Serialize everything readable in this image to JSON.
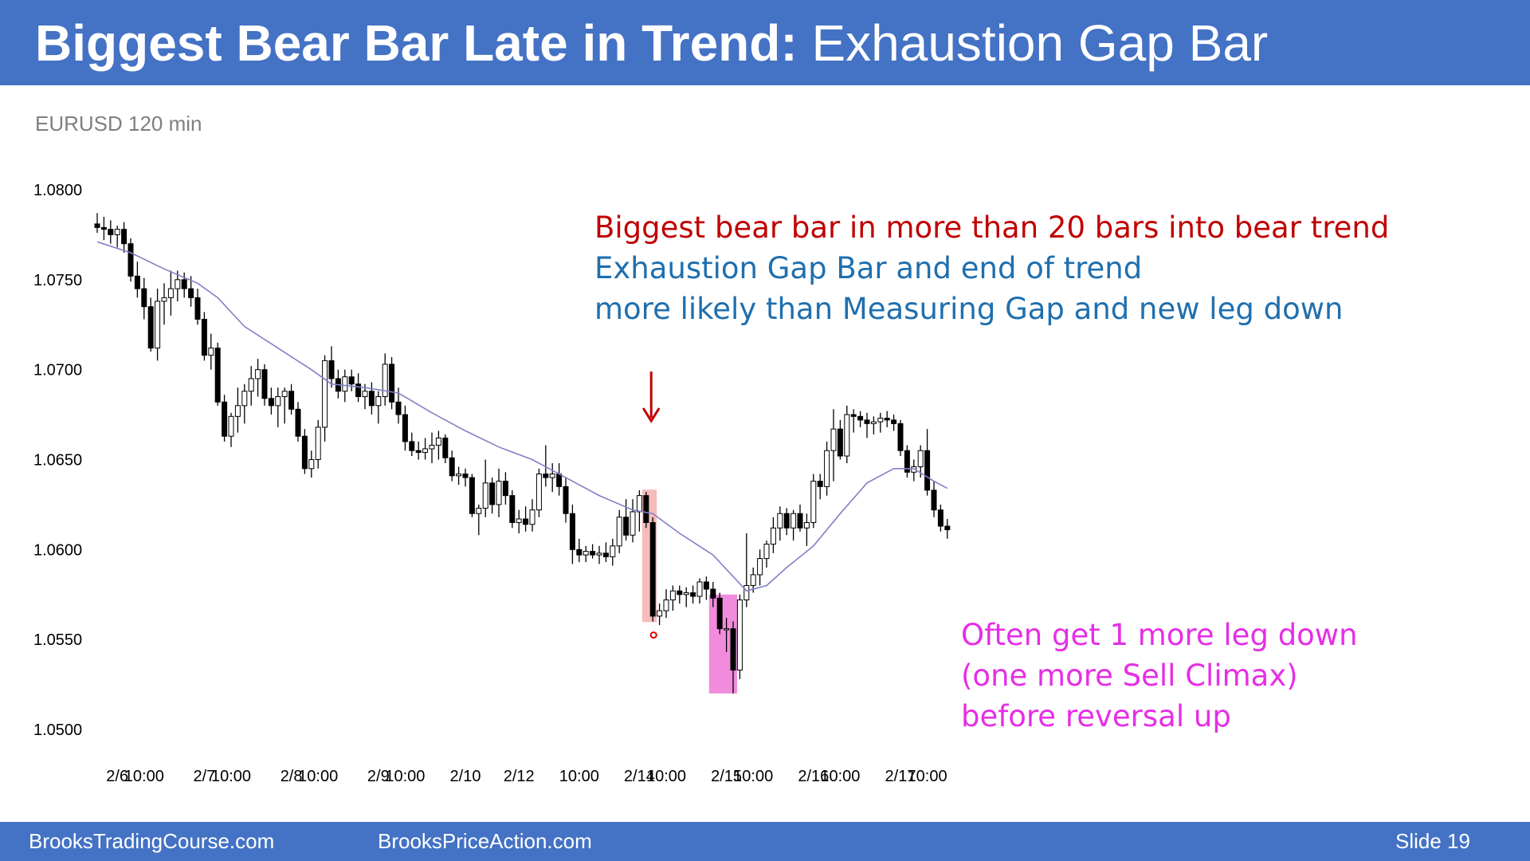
{
  "slide": {
    "title_bold": "Biggest Bear Bar Late in Trend:",
    "title_rest": "Exhaustion Gap Bar",
    "subtitle": "EURUSD 120 min",
    "number": "Slide  19"
  },
  "footer": {
    "left": "BrooksTradingCourse.com",
    "center": "BrooksPriceAction.com"
  },
  "annotations": {
    "top_red": "Biggest bear bar in more than 20 bars into bear trend",
    "top_blue_1": "Exhaustion Gap Bar and end of trend",
    "top_blue_2": "more likely than Measuring Gap and new leg down",
    "bottom_1": "Often get 1 more leg down",
    "bottom_2": "(one more Sell Climax)",
    "bottom_3": "before reversal up"
  },
  "colors": {
    "header": "#4472c4",
    "bear_body": "#000000",
    "bull_body": "#ffffff",
    "ema": "#8080c8",
    "arrow": "#c00000",
    "highlight_red": "#f4b0b0",
    "highlight_magenta": "#f080d8"
  },
  "chart_data": {
    "type": "candlestick",
    "ylim": [
      1.05,
      1.08
    ],
    "yticks": [
      "1.0800",
      "1.0750",
      "1.0700",
      "1.0650",
      "1.0600",
      "1.0550",
      "1.0500"
    ],
    "yvalues": [
      1.08,
      1.075,
      1.07,
      1.065,
      1.06,
      1.055,
      1.05
    ],
    "xticks": [
      {
        "label": "2/6",
        "bar": 3
      },
      {
        "label": "10:00",
        "bar": 7
      },
      {
        "label": "2/7",
        "bar": 16
      },
      {
        "label": "10:00",
        "bar": 20
      },
      {
        "label": "2/8",
        "bar": 29
      },
      {
        "label": "10:00",
        "bar": 33
      },
      {
        "label": "2/9",
        "bar": 42
      },
      {
        "label": "10:00",
        "bar": 46
      },
      {
        "label": "2/10",
        "bar": 55
      },
      {
        "label": "2/12",
        "bar": 63
      },
      {
        "label": "10:00",
        "bar": 72
      },
      {
        "label": "2/14",
        "bar": 81
      },
      {
        "label": "10:00",
        "bar": 85
      },
      {
        "label": "2/15",
        "bar": 94
      },
      {
        "label": "10:00",
        "bar": 98
      },
      {
        "label": "2/16",
        "bar": 107
      },
      {
        "label": "10:00",
        "bar": 111
      },
      {
        "label": "2/17",
        "bar": 120
      },
      {
        "label": "10:00",
        "bar": 124
      }
    ],
    "ohlc": [
      [
        1.0781,
        1.0787,
        1.0776,
        1.0779
      ],
      [
        1.0779,
        1.0785,
        1.0772,
        1.0778
      ],
      [
        1.0778,
        1.0783,
        1.077,
        1.0775
      ],
      [
        1.0775,
        1.078,
        1.0768,
        1.0778
      ],
      [
        1.0778,
        1.0782,
        1.0765,
        1.077
      ],
      [
        1.077,
        1.0773,
        1.0749,
        1.0752
      ],
      [
        1.0752,
        1.076,
        1.074,
        1.0745
      ],
      [
        1.0745,
        1.0751,
        1.0728,
        1.0735
      ],
      [
        1.0735,
        1.074,
        1.071,
        1.0712
      ],
      [
        1.0712,
        1.0745,
        1.0705,
        1.0738
      ],
      [
        1.0738,
        1.0748,
        1.0725,
        1.074
      ],
      [
        1.074,
        1.0755,
        1.073,
        1.0745
      ],
      [
        1.0745,
        1.0755,
        1.0738,
        1.075
      ],
      [
        1.075,
        1.0754,
        1.074,
        1.0745
      ],
      [
        1.0745,
        1.0752,
        1.0735,
        1.074
      ],
      [
        1.074,
        1.0745,
        1.0725,
        1.0728
      ],
      [
        1.0728,
        1.0732,
        1.0705,
        1.0708
      ],
      [
        1.0708,
        1.072,
        1.07,
        1.0712
      ],
      [
        1.0712,
        1.0715,
        1.068,
        1.0682
      ],
      [
        1.0682,
        1.0686,
        1.066,
        1.0663
      ],
      [
        1.0663,
        1.0676,
        1.0657,
        1.0674
      ],
      [
        1.0674,
        1.069,
        1.0665,
        1.068
      ],
      [
        1.068,
        1.0692,
        1.067,
        1.0688
      ],
      [
        1.0688,
        1.0702,
        1.068,
        1.0695
      ],
      [
        1.0695,
        1.0706,
        1.0685,
        1.07
      ],
      [
        1.07,
        1.0703,
        1.068,
        1.0684
      ],
      [
        1.0684,
        1.069,
        1.0675,
        1.068
      ],
      [
        1.068,
        1.069,
        1.0668,
        1.0685
      ],
      [
        1.0685,
        1.069,
        1.067,
        1.0688
      ],
      [
        1.0688,
        1.0692,
        1.0675,
        1.0678
      ],
      [
        1.0678,
        1.0682,
        1.066,
        1.0663
      ],
      [
        1.0663,
        1.0667,
        1.0642,
        1.0645
      ],
      [
        1.0645,
        1.0655,
        1.064,
        1.065
      ],
      [
        1.065,
        1.0672,
        1.0645,
        1.0668
      ],
      [
        1.0668,
        1.0708,
        1.066,
        1.0705
      ],
      [
        1.0705,
        1.0713,
        1.069,
        1.0695
      ],
      [
        1.0695,
        1.07,
        1.0684,
        1.0688
      ],
      [
        1.0688,
        1.07,
        1.0682,
        1.0696
      ],
      [
        1.0696,
        1.07,
        1.0688,
        1.0692
      ],
      [
        1.0692,
        1.0698,
        1.0682,
        1.0685
      ],
      [
        1.0685,
        1.0692,
        1.0678,
        1.0688
      ],
      [
        1.0688,
        1.0693,
        1.0675,
        1.068
      ],
      [
        1.068,
        1.0688,
        1.067,
        1.0685
      ],
      [
        1.0685,
        1.0709,
        1.068,
        1.0703
      ],
      [
        1.0703,
        1.0707,
        1.0678,
        1.0682
      ],
      [
        1.0682,
        1.069,
        1.067,
        1.0675
      ],
      [
        1.0675,
        1.068,
        1.0655,
        1.066
      ],
      [
        1.066,
        1.0665,
        1.0652,
        1.0655
      ],
      [
        1.0655,
        1.066,
        1.065,
        1.0654
      ],
      [
        1.0654,
        1.0662,
        1.065,
        1.0656
      ],
      [
        1.0656,
        1.0665,
        1.0648,
        1.0658
      ],
      [
        1.0658,
        1.0666,
        1.065,
        1.0662
      ],
      [
        1.0662,
        1.0664,
        1.0648,
        1.0651
      ],
      [
        1.0651,
        1.0655,
        1.0638,
        1.0641
      ],
      [
        1.0641,
        1.0646,
        1.0636,
        1.0642
      ],
      [
        1.0642,
        1.0645,
        1.0635,
        1.064
      ],
      [
        1.064,
        1.0642,
        1.0618,
        1.062
      ],
      [
        1.062,
        1.0625,
        1.0608,
        1.0623
      ],
      [
        1.0623,
        1.065,
        1.0618,
        1.0637
      ],
      [
        1.0637,
        1.064,
        1.062,
        1.0625
      ],
      [
        1.0625,
        1.0645,
        1.0618,
        1.0638
      ],
      [
        1.0638,
        1.0643,
        1.0625,
        1.063
      ],
      [
        1.063,
        1.0633,
        1.0612,
        1.0615
      ],
      [
        1.0615,
        1.0622,
        1.0609,
        1.0617
      ],
      [
        1.0617,
        1.0624,
        1.061,
        1.0614
      ],
      [
        1.0614,
        1.0628,
        1.061,
        1.0622
      ],
      [
        1.0622,
        1.0645,
        1.0618,
        1.0642
      ],
      [
        1.0642,
        1.0658,
        1.0635,
        1.064
      ],
      [
        1.064,
        1.0648,
        1.0632,
        1.0642
      ],
      [
        1.0642,
        1.0648,
        1.063,
        1.0635
      ],
      [
        1.0635,
        1.064,
        1.0615,
        1.062
      ],
      [
        1.062,
        1.0625,
        1.0592,
        1.06
      ],
      [
        1.06,
        1.0606,
        1.0593,
        1.0597
      ],
      [
        1.0597,
        1.0602,
        1.0593,
        1.0599
      ],
      [
        1.0599,
        1.0603,
        1.0595,
        1.0597
      ],
      [
        1.0597,
        1.0602,
        1.0592,
        1.0598
      ],
      [
        1.0598,
        1.0604,
        1.0593,
        1.0596
      ],
      [
        1.0596,
        1.0606,
        1.0591,
        1.0602
      ],
      [
        1.0602,
        1.0622,
        1.0598,
        1.0618
      ],
      [
        1.0618,
        1.0628,
        1.0605,
        1.0608
      ],
      [
        1.0608,
        1.0628,
        1.0604,
        1.0621
      ],
      [
        1.0621,
        1.0633,
        1.061,
        1.063
      ],
      [
        1.063,
        1.0632,
        1.0612,
        1.0615
      ],
      [
        1.0615,
        1.0618,
        1.056,
        1.0563
      ],
      [
        1.0563,
        1.057,
        1.0558,
        1.0566
      ],
      [
        1.0566,
        1.0578,
        1.0562,
        1.0572
      ],
      [
        1.0572,
        1.058,
        1.0566,
        1.0577
      ],
      [
        1.0577,
        1.058,
        1.057,
        1.0575
      ],
      [
        1.0575,
        1.0579,
        1.0568,
        1.0576
      ],
      [
        1.0576,
        1.058,
        1.057,
        1.0574
      ],
      [
        1.0574,
        1.0584,
        1.057,
        1.0582
      ],
      [
        1.0582,
        1.0585,
        1.0572,
        1.0578
      ],
      [
        1.0578,
        1.0582,
        1.0568,
        1.0573
      ],
      [
        1.0573,
        1.0576,
        1.0553,
        1.0556
      ],
      [
        1.0556,
        1.0562,
        1.0543,
        1.0556
      ],
      [
        1.0556,
        1.056,
        1.052,
        1.0533
      ],
      [
        1.0533,
        1.0575,
        1.0528,
        1.0572
      ],
      [
        1.0572,
        1.0609,
        1.0568,
        1.058
      ],
      [
        1.058,
        1.059,
        1.0576,
        1.0586
      ],
      [
        1.0586,
        1.06,
        1.058,
        1.0595
      ],
      [
        1.0595,
        1.0605,
        1.059,
        1.0603
      ],
      [
        1.0603,
        1.0618,
        1.0598,
        1.0612
      ],
      [
        1.0612,
        1.0624,
        1.0605,
        1.062
      ],
      [
        1.062,
        1.0623,
        1.0608,
        1.0612
      ],
      [
        1.0612,
        1.0622,
        1.0605,
        1.062
      ],
      [
        1.062,
        1.0625,
        1.061,
        1.0612
      ],
      [
        1.0612,
        1.062,
        1.0602,
        1.0615
      ],
      [
        1.0615,
        1.0642,
        1.0612,
        1.0638
      ],
      [
        1.0638,
        1.0642,
        1.0628,
        1.0635
      ],
      [
        1.0635,
        1.066,
        1.063,
        1.0655
      ],
      [
        1.0655,
        1.0678,
        1.0638,
        1.0667
      ],
      [
        1.0667,
        1.0672,
        1.065,
        1.0652
      ],
      [
        1.0652,
        1.068,
        1.0648,
        1.0675
      ],
      [
        1.0675,
        1.0678,
        1.0665,
        1.0674
      ],
      [
        1.0674,
        1.0677,
        1.0668,
        1.0672
      ],
      [
        1.0672,
        1.0676,
        1.0662,
        1.067
      ],
      [
        1.067,
        1.0674,
        1.0664,
        1.0671
      ],
      [
        1.0671,
        1.0676,
        1.0665,
        1.0673
      ],
      [
        1.0673,
        1.0677,
        1.0668,
        1.0672
      ],
      [
        1.0672,
        1.0675,
        1.0666,
        1.067
      ],
      [
        1.067,
        1.0672,
        1.0652,
        1.0655
      ],
      [
        1.0655,
        1.0658,
        1.064,
        1.0643
      ],
      [
        1.0643,
        1.065,
        1.0638,
        1.0646
      ],
      [
        1.0646,
        1.0658,
        1.064,
        1.0655
      ],
      [
        1.0655,
        1.0667,
        1.063,
        1.0633
      ],
      [
        1.0633,
        1.0638,
        1.0618,
        1.0622
      ],
      [
        1.0622,
        1.0625,
        1.061,
        1.0613
      ],
      [
        1.0613,
        1.0617,
        1.0606,
        1.0611
      ]
    ],
    "ema": [
      [
        0,
        1.0771
      ],
      [
        5,
        1.0765
      ],
      [
        10,
        1.0756
      ],
      [
        15,
        1.0748
      ],
      [
        18,
        1.074
      ],
      [
        22,
        1.0724
      ],
      [
        27,
        1.0712
      ],
      [
        32,
        1.07
      ],
      [
        35,
        1.0692
      ],
      [
        40,
        1.069
      ],
      [
        45,
        1.0687
      ],
      [
        50,
        1.0676
      ],
      [
        55,
        1.0666
      ],
      [
        60,
        1.0657
      ],
      [
        65,
        1.065
      ],
      [
        70,
        1.064
      ],
      [
        75,
        1.063
      ],
      [
        80,
        1.0622
      ],
      [
        83,
        1.062
      ],
      [
        87,
        1.0609
      ],
      [
        92,
        1.0597
      ],
      [
        95,
        1.0585
      ],
      [
        97,
        1.0577
      ],
      [
        100,
        1.058
      ],
      [
        103,
        1.059
      ],
      [
        107,
        1.0602
      ],
      [
        111,
        1.062
      ],
      [
        115,
        1.0637
      ],
      [
        119,
        1.0645
      ],
      [
        122,
        1.0645
      ],
      [
        125,
        1.0638
      ],
      [
        127,
        1.0634
      ]
    ],
    "highlight_red": {
      "bars": [
        82,
        83
      ],
      "ylim": [
        1.0561,
        1.0632
      ]
    },
    "highlight_magenta": {
      "bars": [
        92,
        95
      ],
      "ylim": [
        1.052,
        1.0575
      ]
    },
    "arrow_bar": 83,
    "marker_bar": 83
  }
}
